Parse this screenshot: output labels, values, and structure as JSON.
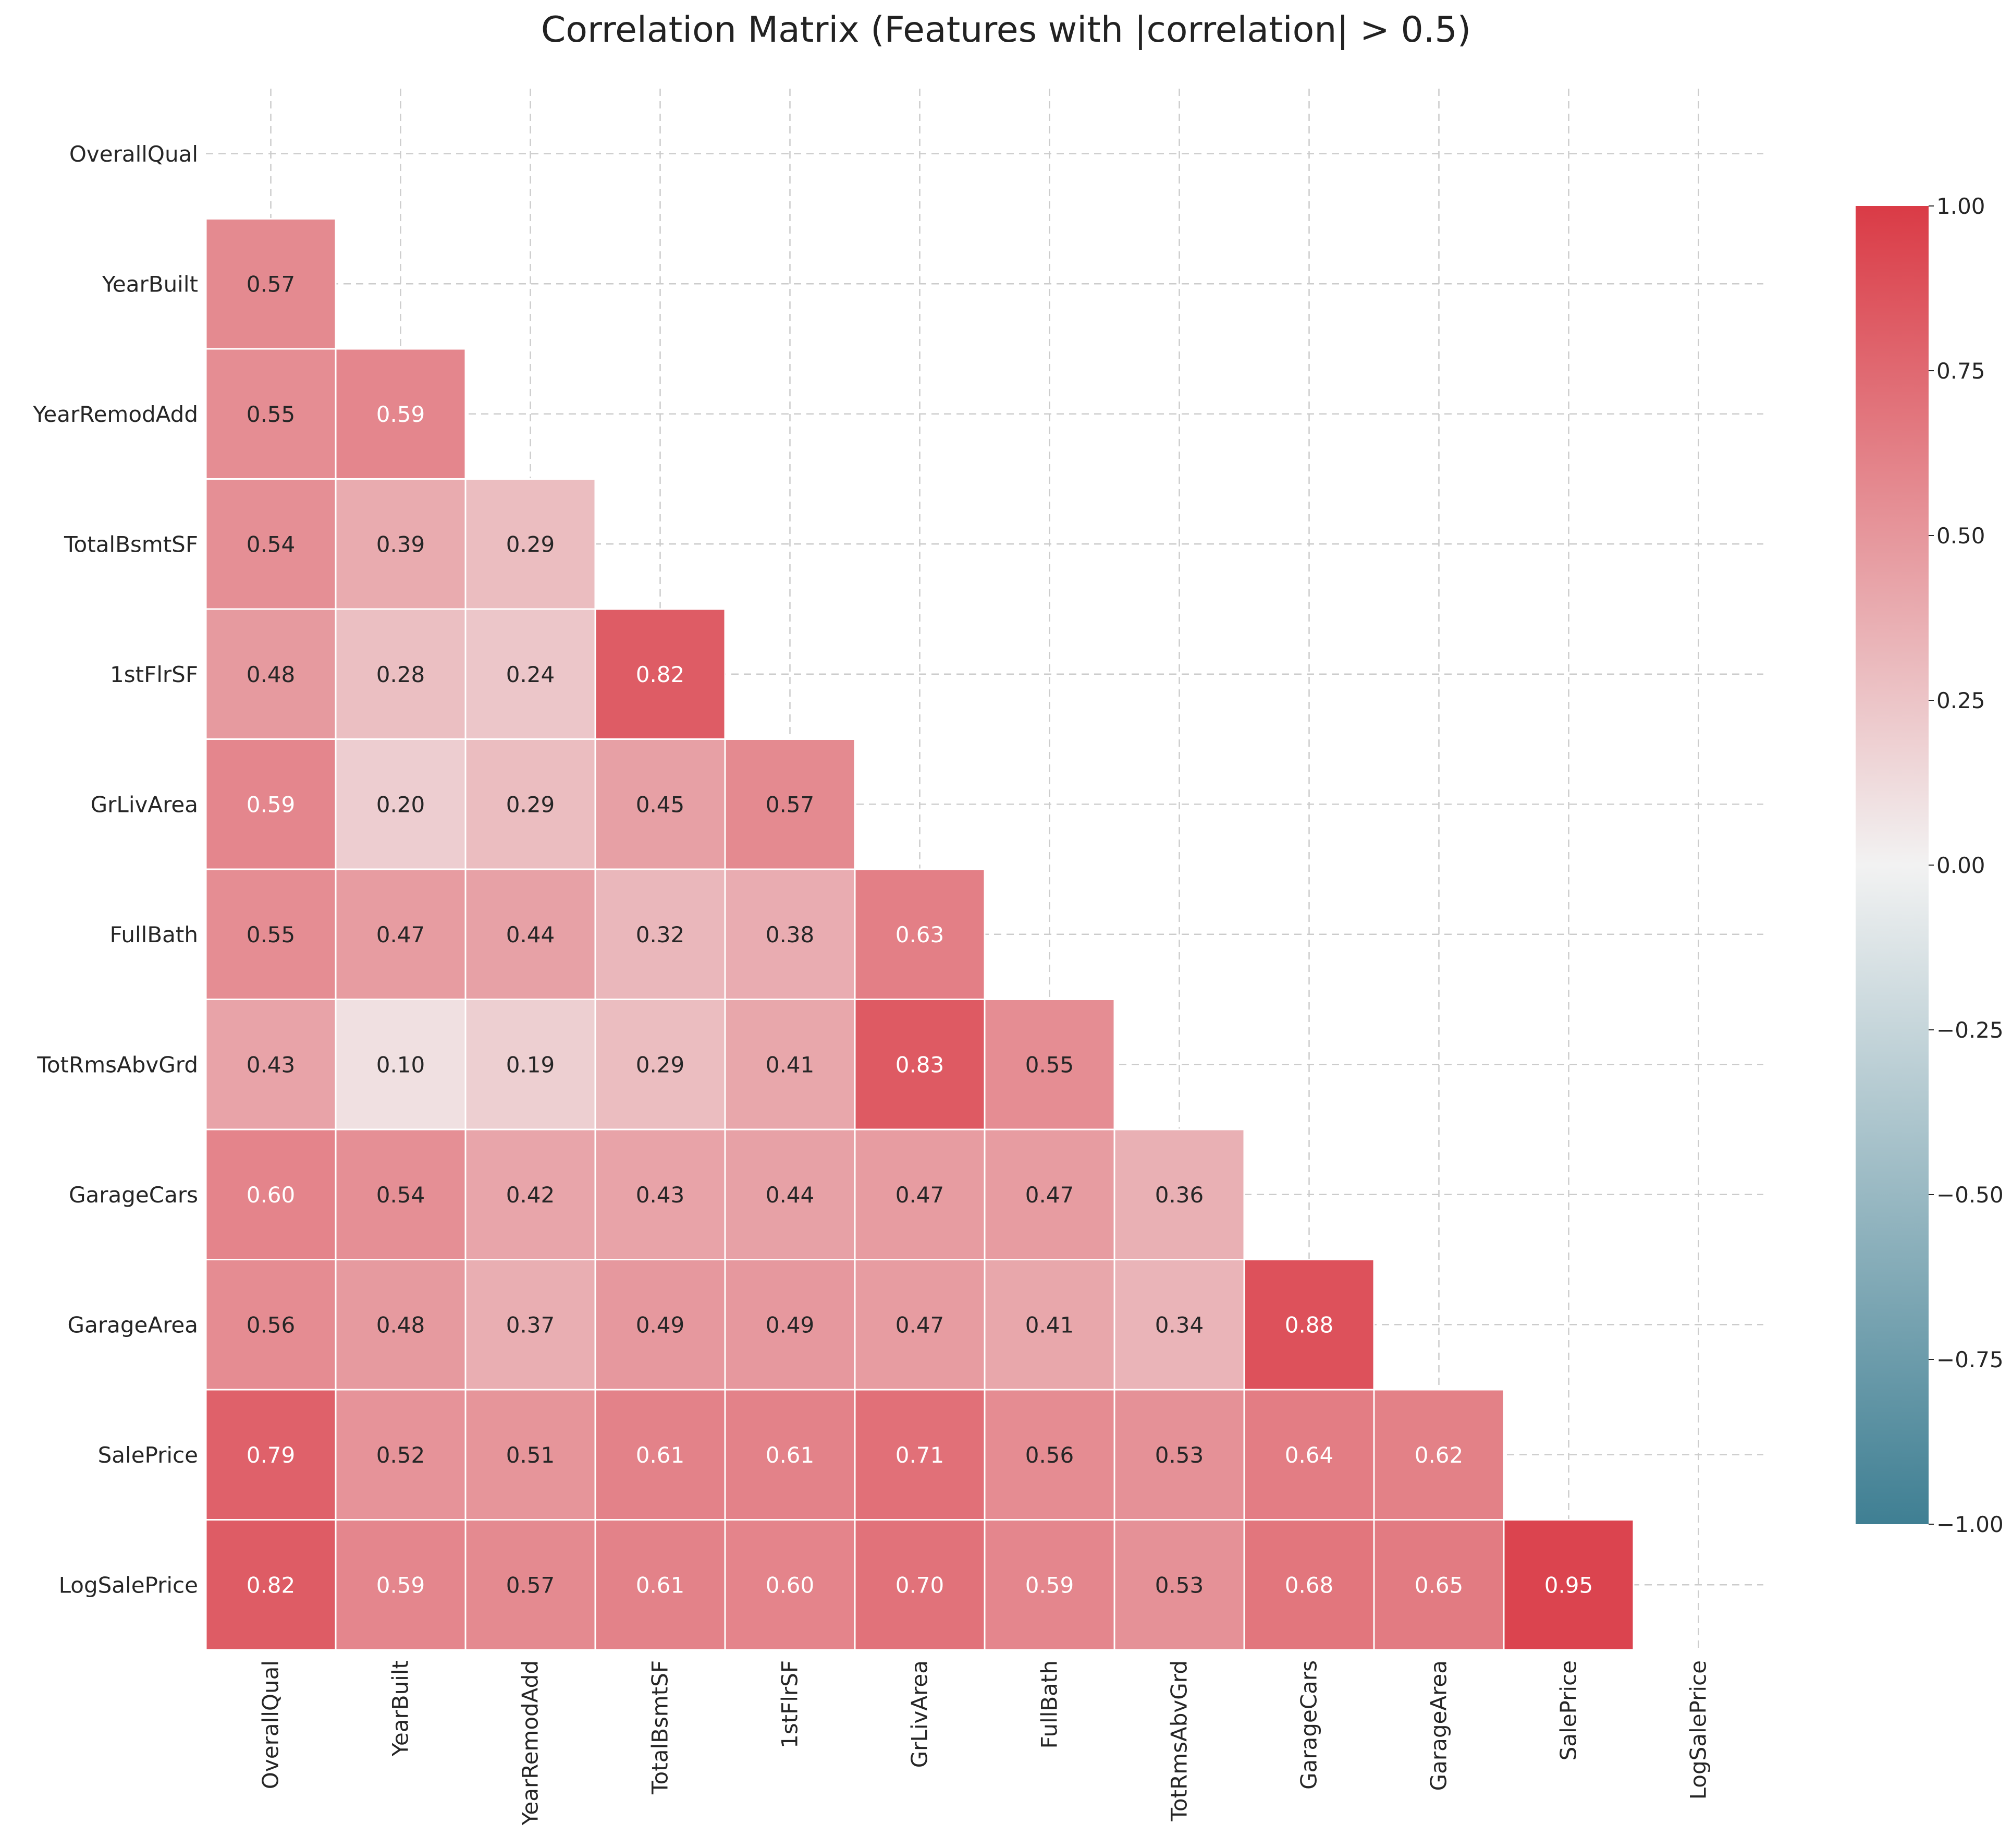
{
  "chart_data": {
    "type": "heatmap",
    "title": "Correlation Matrix (Features with |correlation| > 0.5)",
    "xlabel": "",
    "ylabel": "",
    "labels": [
      "OverallQual",
      "YearBuilt",
      "YearRemodAdd",
      "TotalBsmtSF",
      "1stFlrSF",
      "GrLivArea",
      "FullBath",
      "TotRmsAbvGrd",
      "GarageCars",
      "GarageArea",
      "SalePrice",
      "LogSalePrice"
    ],
    "mask": "upper-triangle-including-diagonal",
    "values": [
      [
        null,
        null,
        null,
        null,
        null,
        null,
        null,
        null,
        null,
        null,
        null,
        null
      ],
      [
        0.57,
        null,
        null,
        null,
        null,
        null,
        null,
        null,
        null,
        null,
        null,
        null
      ],
      [
        0.55,
        0.59,
        null,
        null,
        null,
        null,
        null,
        null,
        null,
        null,
        null,
        null
      ],
      [
        0.54,
        0.39,
        0.29,
        null,
        null,
        null,
        null,
        null,
        null,
        null,
        null,
        null
      ],
      [
        0.48,
        0.28,
        0.24,
        0.82,
        null,
        null,
        null,
        null,
        null,
        null,
        null,
        null
      ],
      [
        0.59,
        0.2,
        0.29,
        0.45,
        0.57,
        null,
        null,
        null,
        null,
        null,
        null,
        null
      ],
      [
        0.55,
        0.47,
        0.44,
        0.32,
        0.38,
        0.63,
        null,
        null,
        null,
        null,
        null,
        null
      ],
      [
        0.43,
        0.1,
        0.19,
        0.29,
        0.41,
        0.83,
        0.55,
        null,
        null,
        null,
        null,
        null
      ],
      [
        0.6,
        0.54,
        0.42,
        0.43,
        0.44,
        0.47,
        0.47,
        0.36,
        null,
        null,
        null,
        null
      ],
      [
        0.56,
        0.48,
        0.37,
        0.49,
        0.49,
        0.47,
        0.41,
        0.34,
        0.88,
        null,
        null,
        null
      ],
      [
        0.79,
        0.52,
        0.51,
        0.61,
        0.61,
        0.71,
        0.56,
        0.53,
        0.64,
        0.62,
        null,
        null
      ],
      [
        0.82,
        0.59,
        0.57,
        0.61,
        0.6,
        0.7,
        0.59,
        0.53,
        0.68,
        0.65,
        0.95,
        null
      ]
    ],
    "colorbar": {
      "range": [
        -1.0,
        1.0
      ],
      "ticks": [
        "1.00",
        "0.75",
        "0.50",
        "0.25",
        "0.00",
        "−0.25",
        "−0.50",
        "−0.75",
        "−1.00"
      ],
      "tick_values": [
        1.0,
        0.75,
        0.5,
        0.25,
        0.0,
        -0.25,
        -0.5,
        -0.75,
        -1.0
      ],
      "colors": {
        "low": "#3f7f93",
        "mid": "#f2f2f2",
        "high": "#da3b46"
      }
    },
    "grid": true
  }
}
